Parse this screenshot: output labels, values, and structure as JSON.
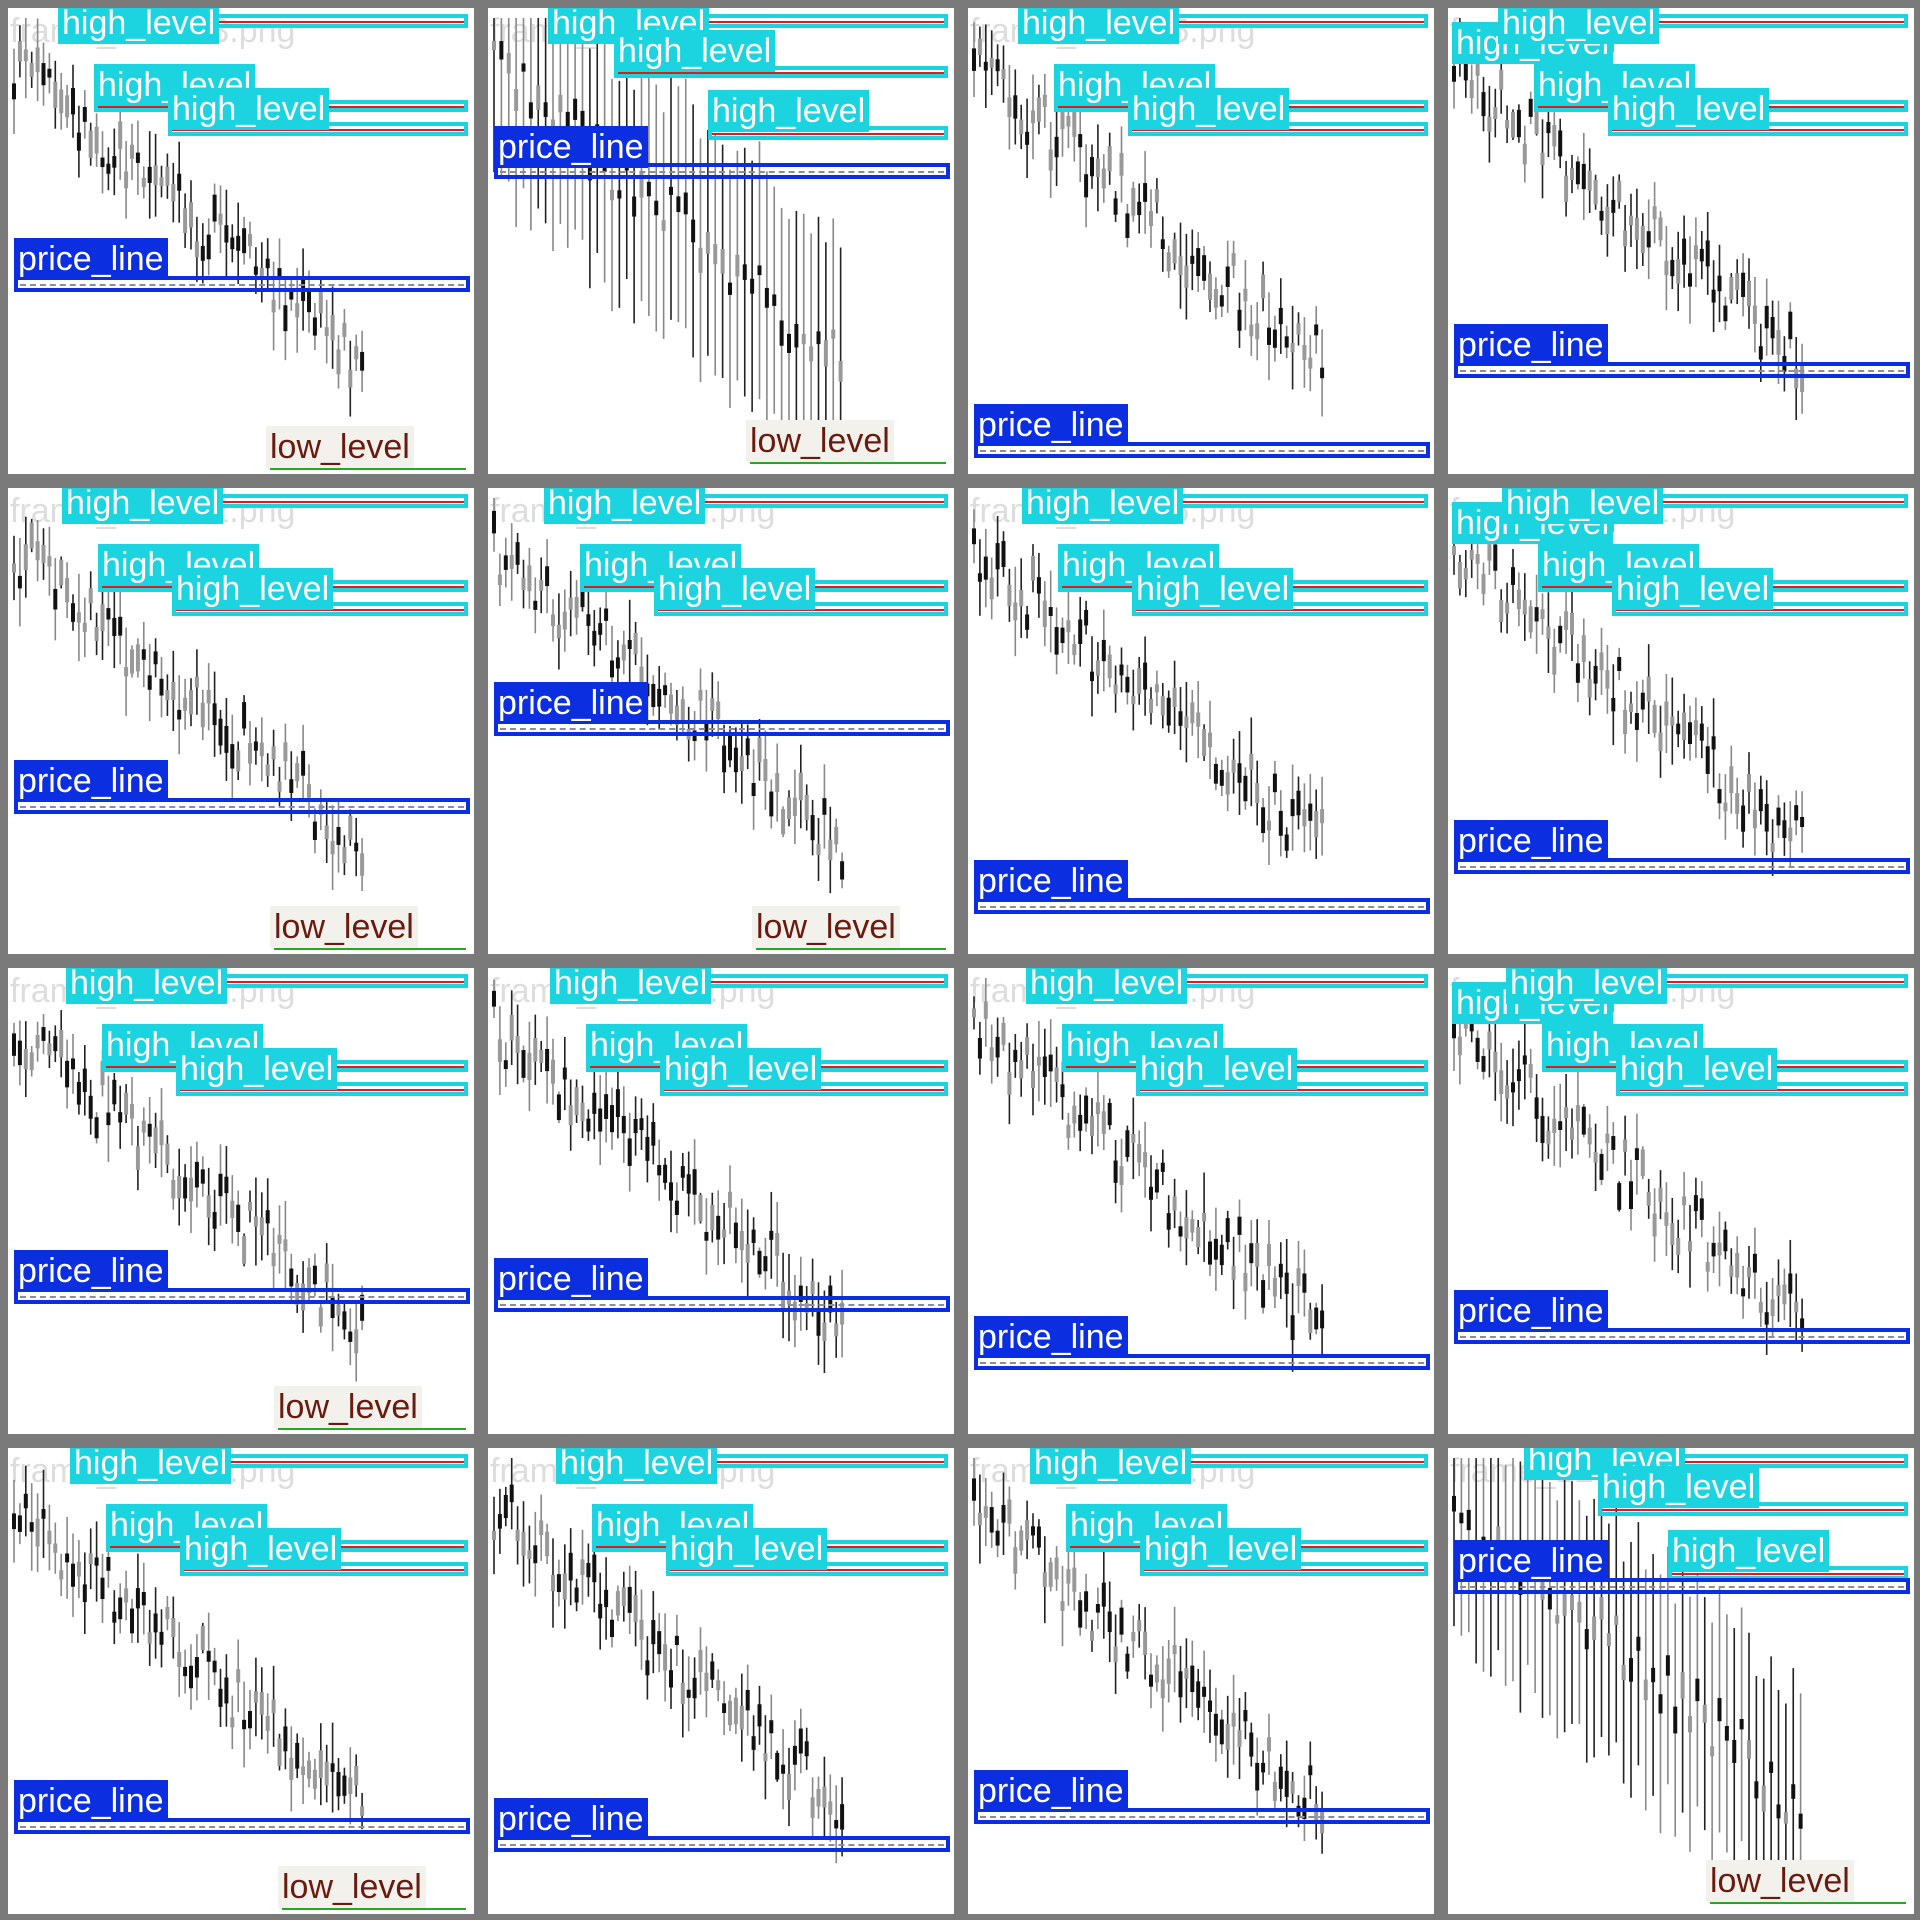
{
  "window": {
    "title": ""
  },
  "colors": {
    "high_level": "#1cd3e0",
    "price_line": "#0b2fe0",
    "low_level_text": "#6a1a0e",
    "low_level_line": "#22aa22",
    "background": "#7a7a7a",
    "panel": "#ffffff",
    "red_line": "#d62020",
    "filename_text": "#dddddd"
  },
  "labels": {
    "high": "high_level",
    "price": "price_line",
    "low": "low_level"
  },
  "tiles": [
    {
      "filename": "frame_227643.png",
      "high_count": 3,
      "has_price": true,
      "has_low": true
    },
    {
      "filename": "frame_227",
      "high_count": 3,
      "has_price": true,
      "has_low": true
    },
    {
      "filename": "frame_227635.png",
      "high_count": 3,
      "has_price": true,
      "has_low": false
    },
    {
      "filename": "frame_2",
      "high_count": 4,
      "has_price": true,
      "has_low": false
    },
    {
      "filename": "frame_227642.png",
      "high_count": 3,
      "has_price": true,
      "has_low": true
    },
    {
      "filename": "frame_227639.png",
      "high_count": 3,
      "has_price": true,
      "has_low": true
    },
    {
      "filename": "frame_227636.png",
      "high_count": 3,
      "has_price": true,
      "has_low": false
    },
    {
      "filename": "frame_227631.png",
      "high_count": 4,
      "has_price": true,
      "has_low": false
    },
    {
      "filename": "frame_227641.png",
      "high_count": 3,
      "has_price": true,
      "has_low": true
    },
    {
      "filename": "frame_227638.png",
      "high_count": 3,
      "has_price": true,
      "has_low": false
    },
    {
      "filename": "frame_227634.png",
      "high_count": 3,
      "has_price": true,
      "has_low": false
    },
    {
      "filename": "frame_227632.png",
      "high_count": 4,
      "has_price": true,
      "has_low": false
    },
    {
      "filename": "frame_227640.png",
      "high_count": 3,
      "has_price": true,
      "has_low": true
    },
    {
      "filename": "frame_227637.png",
      "high_count": 3,
      "has_price": true,
      "has_low": false
    },
    {
      "filename": "frame_227633.png",
      "high_count": 3,
      "has_price": true,
      "has_low": false
    },
    {
      "filename": "frame_22",
      "high_count": 3,
      "has_price": true,
      "has_low": true
    }
  ]
}
